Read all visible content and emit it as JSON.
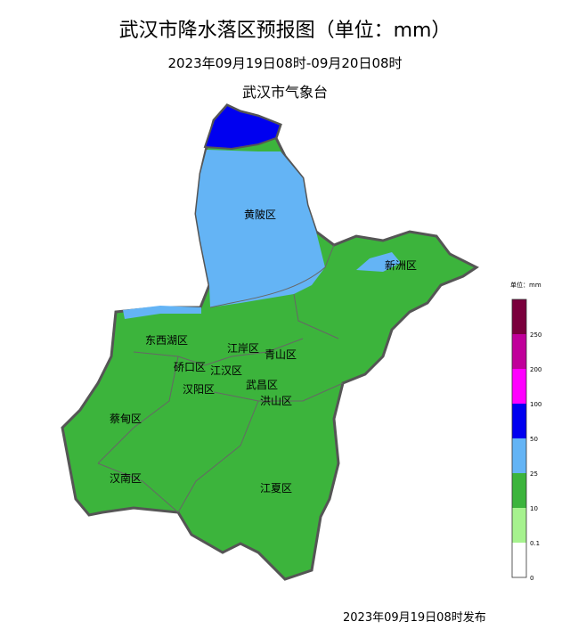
{
  "title": "武汉市降水落区预报图（单位：mm）",
  "period": "2023年09月19日08时-09月20日08时",
  "issuer": "武汉市气象台",
  "published": "2023年09月19日08时发布",
  "districts": [
    "黄陂区",
    "新洲区",
    "东西湖区",
    "江岸区",
    "青山区",
    "硚口区",
    "江汉区",
    "汉阳区",
    "武昌区",
    "洪山区",
    "蔡甸区",
    "汉南区",
    "江夏区"
  ],
  "legend": {
    "unit": "单位：mm",
    "ticks": [
      "250",
      "200",
      "100",
      "50",
      "25",
      "10",
      "0.1",
      "0"
    ],
    "colors": [
      "#7a003c",
      "#c0009a",
      "#ff00ff",
      "#0000f0",
      "#64b4f5",
      "#3cb43c",
      "#a6f28e",
      "#ffffff"
    ]
  },
  "rain_colors": {
    "10-25": "#3cb43c",
    "25-50": "#64b4f5",
    "50-100": "#0000f0"
  }
}
